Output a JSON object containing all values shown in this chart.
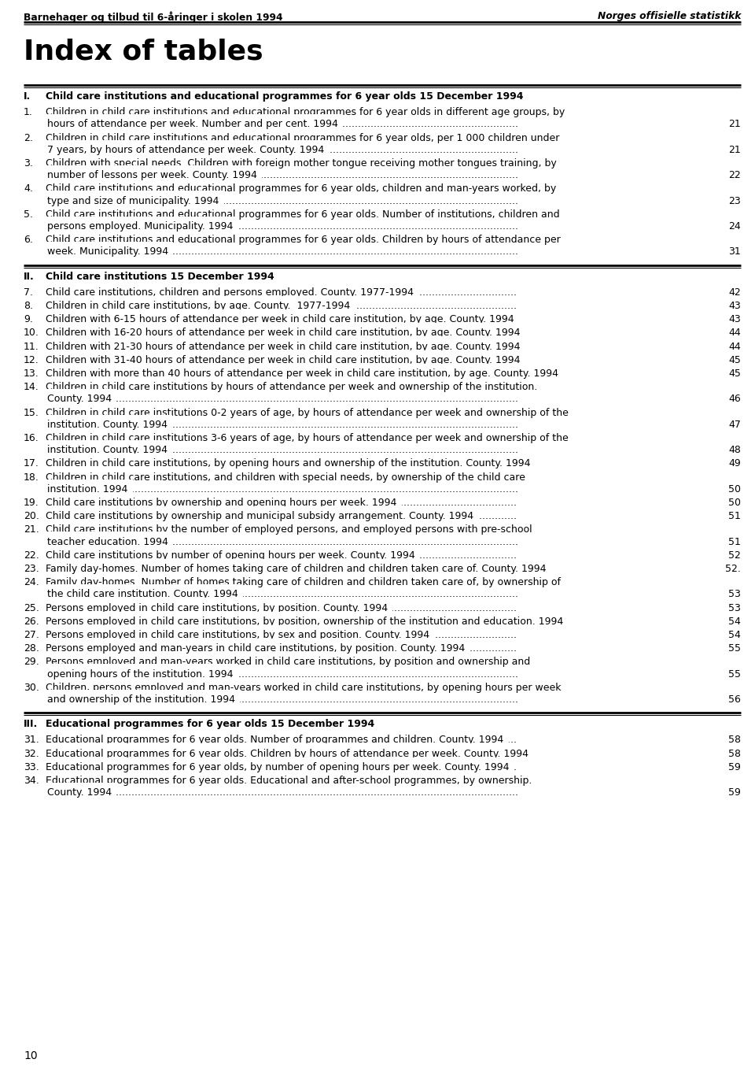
{
  "header_left": "Barnehager og tilbud til 6-åringer i skolen 1994",
  "header_right": "Norges offisielle statistikk",
  "title": "Index of tables",
  "page_number": "10",
  "bg_color": "#ffffff",
  "text_color": "#000000",
  "sections": [
    {
      "roman": "I.",
      "heading": "Child care institutions and educational programmes for 6 year olds 15 December 1994",
      "items": [
        {
          "num": "1.",
          "lines": [
            "Children in child care institutions and educational programmes for 6 year olds in different age groups, by",
            "hours of attendance per week. Number and per cent. 1994"
          ],
          "page": "21"
        },
        {
          "num": "2.",
          "lines": [
            "Children in child care institutions and educational programmes for 6 year olds, per 1 000 children under",
            "7 years, by hours of attendance per week. County. 1994"
          ],
          "page": "21"
        },
        {
          "num": "3.",
          "lines": [
            "Children with special needs. Children with foreign mother tongue receiving mother tongues training, by",
            "number of lessons per week. County. 1994"
          ],
          "page": "22"
        },
        {
          "num": "4.",
          "lines": [
            "Child care institutions and educational programmes for 6 year olds, children and man-years worked, by",
            "type and size of municipality. 1994"
          ],
          "page": "23"
        },
        {
          "num": "5.",
          "lines": [
            "Child care institutions and educational programmes for 6 year olds. Number of institutions, children and",
            "persons employed. Municipality. 1994"
          ],
          "page": "24"
        },
        {
          "num": "6.",
          "lines": [
            "Child care institutions and educational programmes for 6 year olds. Children by hours of attendance per",
            "week. Municipality. 1994"
          ],
          "page": "31"
        }
      ]
    },
    {
      "roman": "II.",
      "heading": "Child care institutions 15 December 1994",
      "items": [
        {
          "num": "7.",
          "lines": [
            "Child care institutions, children and persons employed. County. 1977-1994"
          ],
          "page": "42"
        },
        {
          "num": "8.",
          "lines": [
            "Children in child care institutions, by age. County.  1977-1994"
          ],
          "page": "43"
        },
        {
          "num": "9.",
          "lines": [
            "Children with 6-15 hours of attendance per week in child care institution, by age. County. 1994"
          ],
          "page": "43"
        },
        {
          "num": "10.",
          "lines": [
            "Children with 16-20 hours of attendance per week in child care institution, by age. County. 1994"
          ],
          "page": "44"
        },
        {
          "num": "11.",
          "lines": [
            "Children with 21-30 hours of attendance per week in child care institution, by age. County. 1994"
          ],
          "page": "44"
        },
        {
          "num": "12.",
          "lines": [
            "Children with 31-40 hours of attendance per week in child care institution, by age. County. 1994"
          ],
          "page": "45"
        },
        {
          "num": "13.",
          "lines": [
            "Children with more than 40 hours of attendance per week in child care institution, by age. County. 1994"
          ],
          "page": "45"
        },
        {
          "num": "14.",
          "lines": [
            "Children in child care institutions by hours of attendance per week and ownership of the institution.",
            "County. 1994"
          ],
          "page": "46"
        },
        {
          "num": "15.",
          "lines": [
            "Children in child care institutions 0-2 years of age, by hours of attendance per week and ownership of the",
            "institution. County. 1994"
          ],
          "page": "47"
        },
        {
          "num": "16.",
          "lines": [
            "Children in child care institutions 3-6 years of age, by hours of attendance per week and ownership of the",
            "institution. County. 1994"
          ],
          "page": "48"
        },
        {
          "num": "17.",
          "lines": [
            "Children in child care institutions, by opening hours and ownership of the institution. County. 1994"
          ],
          "page": "49"
        },
        {
          "num": "18.",
          "lines": [
            "Children in child care institutions, and children with special needs, by ownership of the child care",
            "institution. 1994"
          ],
          "page": "50"
        },
        {
          "num": "19.",
          "lines": [
            "Child care institutions by ownership and opening hours per week. 1994"
          ],
          "page": "50"
        },
        {
          "num": "20.",
          "lines": [
            "Child care institutions by ownership and municipal subsidy arrangement. County. 1994"
          ],
          "page": "51"
        },
        {
          "num": "21.",
          "lines": [
            "Child care institutions by the number of employed persons, and employed persons with pre-school",
            "teacher education. 1994"
          ],
          "page": "51"
        },
        {
          "num": "22.",
          "lines": [
            "Child care institutions by number of opening hours per week. County. 1994"
          ],
          "page": "52"
        },
        {
          "num": "23.",
          "lines": [
            "Family day-homes. Number of homes taking care of children and children taken care of. County. 1994"
          ],
          "page": "52."
        },
        {
          "num": "24.",
          "lines": [
            "Family day-homes. Number of homes taking care of children and children taken care of, by ownership of",
            "the child care institution. County. 1994"
          ],
          "page": "53"
        },
        {
          "num": "25.",
          "lines": [
            "Persons employed in child care institutions, by position. County. 1994"
          ],
          "page": "53"
        },
        {
          "num": "26.",
          "lines": [
            "Persons employed in child care institutions, by position, ownership of the institution and education. 1994"
          ],
          "page": "54"
        },
        {
          "num": "27.",
          "lines": [
            "Persons employed in child care institutions, by sex and position. County. 1994"
          ],
          "page": "54"
        },
        {
          "num": "28.",
          "lines": [
            "Persons employed and man-years in child care institutions, by position. County. 1994"
          ],
          "page": "55"
        },
        {
          "num": "29.",
          "lines": [
            "Persons employed and man-years worked in child care institutions, by position and ownership and",
            "opening hours of the institution. 1994"
          ],
          "page": "55"
        },
        {
          "num": "30.",
          "lines": [
            "Children, persons employed and man-years worked in child care institutions, by opening hours per week",
            "and ownership of the institution. 1994"
          ],
          "page": "56"
        }
      ]
    },
    {
      "roman": "III.",
      "heading": "Educational programmes for 6 year olds 15 December 1994",
      "items": [
        {
          "num": "31.",
          "lines": [
            "Educational programmes for 6 year olds. Number of programmes and children. County. 1994"
          ],
          "page": "58"
        },
        {
          "num": "32.",
          "lines": [
            "Educational programmes for 6 year olds. Children by hours of attendance per week. County. 1994"
          ],
          "page": "58"
        },
        {
          "num": "33.",
          "lines": [
            "Educational programmes for 6 year olds, by number of opening hours per week. County. 1994"
          ],
          "page": "59"
        },
        {
          "num": "34.",
          "lines": [
            "Educational programmes for 6 year olds. Educational and after-school programmes, by ownership.",
            "County. 1994"
          ],
          "page": "59"
        }
      ]
    }
  ]
}
